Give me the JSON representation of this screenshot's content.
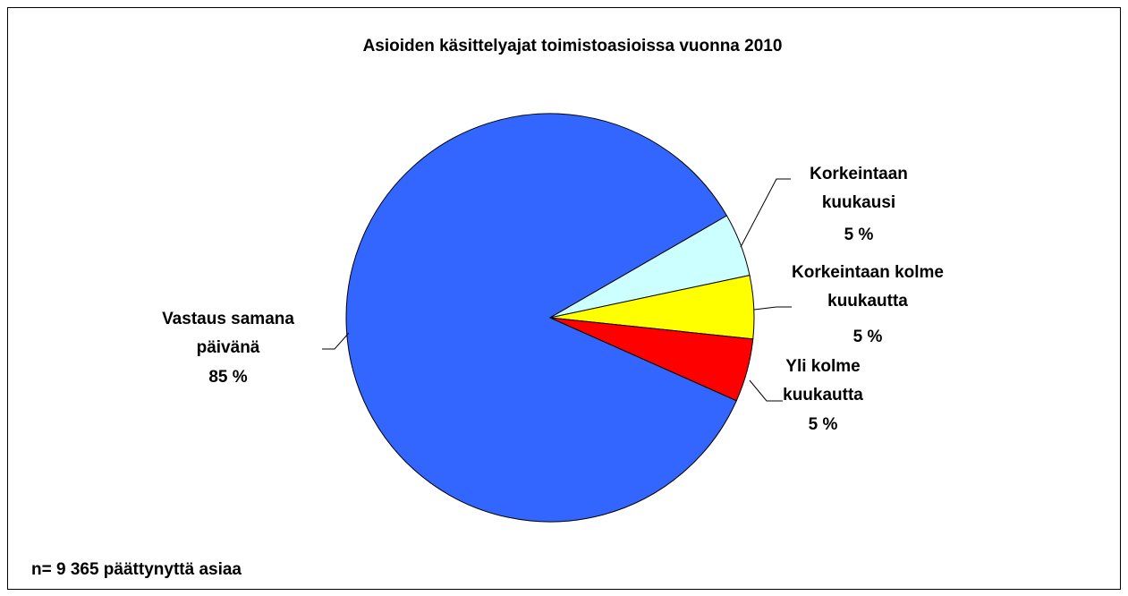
{
  "chart_data": {
    "type": "pie",
    "title": "Asioiden käsittelyajat toimistoasioissa vuonna 2010",
    "categories": [
      "Vastaus samana\npäivänä",
      "Korkeintaan\nkuukausi",
      "Korkeintaan kolme\nkuukautta",
      "Yli kolme\nkuukautta"
    ],
    "values": [
      85,
      5,
      5,
      5
    ],
    "value_labels": [
      "85 %",
      "5 %",
      "5 %",
      "5 %"
    ],
    "colors": [
      "#3366ff",
      "#ccffff",
      "#ffff00",
      "#ff0000"
    ],
    "note": "n= 9 365 päättynyttä asiaa"
  }
}
